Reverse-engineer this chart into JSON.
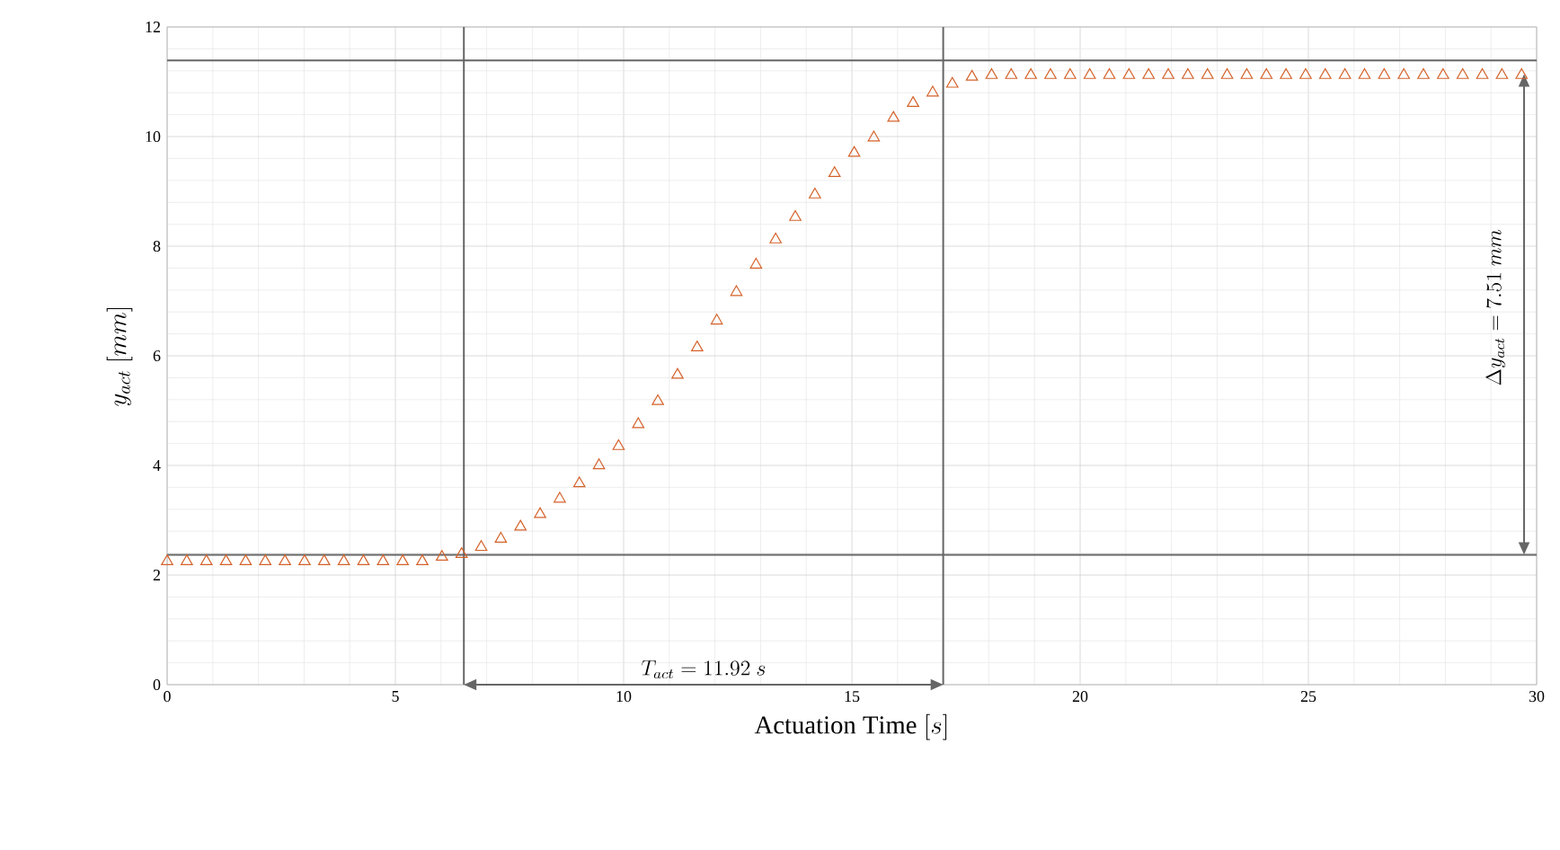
{
  "chart_data": {
    "type": "scatter",
    "xlabel": "\\mathrm{Actuation\\ Time}\\ [s]",
    "ylabel": "y_{act}\\ [mm]",
    "x": [
      0,
      0.43,
      0.86,
      1.29,
      1.72,
      2.15,
      2.58,
      3.01,
      3.44,
      3.87,
      4.3,
      4.73,
      5.16,
      5.59,
      6.02,
      6.45,
      6.88,
      7.31,
      7.74,
      8.17,
      8.6,
      9.03,
      9.46,
      9.89,
      10.32,
      10.75,
      11.18,
      11.61,
      12.04,
      12.47,
      12.9,
      13.33,
      13.76,
      14.19,
      14.62,
      15.05,
      15.48,
      15.91,
      16.34,
      16.77,
      17.2,
      17.63,
      18.06,
      18.49,
      18.92,
      19.35,
      19.78,
      20.21,
      20.64,
      21.07,
      21.5,
      21.93,
      22.36,
      22.79,
      23.22,
      23.65,
      24.08,
      24.51,
      24.94,
      25.37,
      25.8,
      26.23,
      26.66,
      27.09,
      27.52,
      27.95,
      28.38,
      28.81,
      29.24,
      29.67
    ],
    "series": [
      {
        "color": "#d4622a",
        "values": [
          2.25,
          2.25,
          2.25,
          2.25,
          2.25,
          2.25,
          2.25,
          2.25,
          2.25,
          2.25,
          2.25,
          2.25,
          2.25,
          2.25,
          2.33,
          2.38,
          2.51,
          2.66,
          2.88,
          3.11,
          3.39,
          3.67,
          4.0,
          4.35,
          4.75,
          5.17,
          5.65,
          6.15,
          6.64,
          7.16,
          7.66,
          8.12,
          8.53,
          8.94,
          9.33,
          9.7,
          9.98,
          10.34,
          10.61,
          10.8,
          10.96,
          11.09,
          11.12,
          11.12,
          11.12,
          11.12,
          11.12,
          11.12,
          11.12,
          11.12,
          11.12,
          11.12,
          11.12,
          11.12,
          11.12,
          11.12,
          11.12,
          11.12,
          11.12,
          11.12,
          11.12,
          11.12,
          11.12,
          11.12,
          11.12,
          11.12,
          11.12,
          11.12,
          11.12,
          11.12
        ]
      }
    ],
    "marker": "triangle",
    "xlim": [
      0,
      30
    ],
    "xticks": [
      0,
      5,
      10,
      15,
      20,
      25,
      30
    ],
    "ylim": [
      0,
      12
    ],
    "yticks": [
      0,
      2,
      4,
      6,
      8,
      10,
      12
    ],
    "grid": true,
    "ref_lines": [
      {
        "axis": "x",
        "value": 6.5,
        "color": "#666666"
      },
      {
        "axis": "x",
        "value": 17.0,
        "color": "#666666"
      },
      {
        "axis": "y",
        "value": 2.37,
        "color": "#666666"
      },
      {
        "axis": "y",
        "value": 11.39,
        "color": "#666666"
      }
    ],
    "annotations": [
      "T_{act} = 11.92\\ s",
      "\\Delta y_{act} = 7.51\\ mm"
    ]
  }
}
